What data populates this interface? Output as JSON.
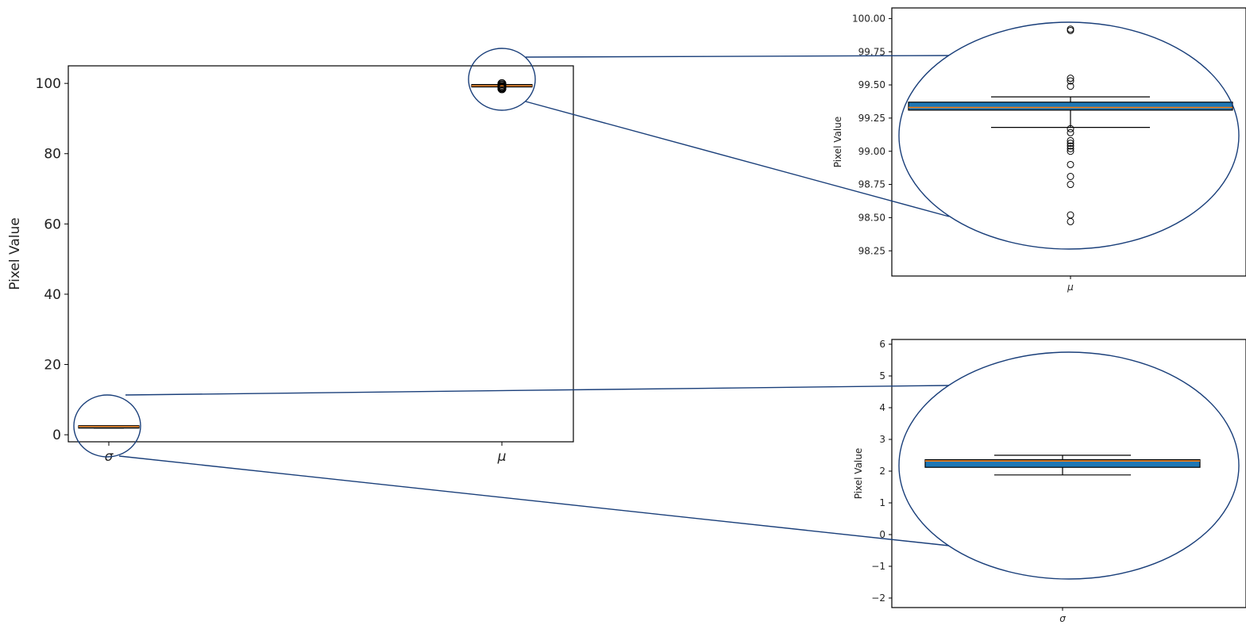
{
  "chart_data": [
    {
      "id": "main",
      "type": "box",
      "categories": [
        "σ",
        "μ"
      ],
      "ylabel": "Pixel Value",
      "ylim": [
        -2,
        105
      ],
      "yticks": [
        0,
        20,
        40,
        60,
        80,
        100
      ],
      "boxes": [
        {
          "category": "σ",
          "q1": 2.12,
          "median": 2.32,
          "q3": 2.36,
          "whisker_low": 1.88,
          "whisker_high": 2.5,
          "outliers": []
        },
        {
          "category": "μ",
          "q1": 99.31,
          "median": 99.33,
          "q3": 99.37,
          "whisker_low": 99.18,
          "whisker_high": 99.41,
          "outliers": [
            99.92,
            99.91,
            99.55,
            99.53,
            99.49,
            99.17,
            99.14,
            99.08,
            99.06,
            99.04,
            99.02,
            99.0,
            98.9,
            98.81,
            98.75,
            98.52,
            98.47
          ]
        }
      ]
    },
    {
      "id": "zoom-mu",
      "type": "box",
      "categories": [
        "μ"
      ],
      "ylabel": "Pixel Value",
      "ylim": [
        98.06,
        100.08
      ],
      "yticks": [
        "98.25",
        "98.50",
        "98.75",
        "99.00",
        "99.25",
        "99.50",
        "99.75",
        "100.00"
      ],
      "boxes": [
        {
          "category": "μ",
          "q1": 99.31,
          "median": 99.33,
          "q3": 99.37,
          "whisker_low": 99.18,
          "whisker_high": 99.41,
          "outliers": [
            99.92,
            99.91,
            99.55,
            99.53,
            99.49,
            99.17,
            99.14,
            99.08,
            99.06,
            99.04,
            99.02,
            99.0,
            98.9,
            98.81,
            98.75,
            98.52,
            98.47
          ]
        }
      ]
    },
    {
      "id": "zoom-sigma",
      "type": "box",
      "categories": [
        "σ"
      ],
      "ylabel": "Pixel Value",
      "ylim": [
        -2.3,
        6.15
      ],
      "yticks": [
        "−2",
        "−1",
        "0",
        "1",
        "2",
        "3",
        "4",
        "5",
        "6"
      ],
      "boxes": [
        {
          "category": "σ",
          "q1": 2.12,
          "median": 2.32,
          "q3": 2.36,
          "whisker_low": 1.88,
          "whisker_high": 2.5,
          "outliers": []
        }
      ]
    }
  ],
  "colors": {
    "box_fill": "#1f77b4",
    "median": "#ff7f0e",
    "magnifier": "#1a3f7a",
    "axes": "#000000"
  }
}
